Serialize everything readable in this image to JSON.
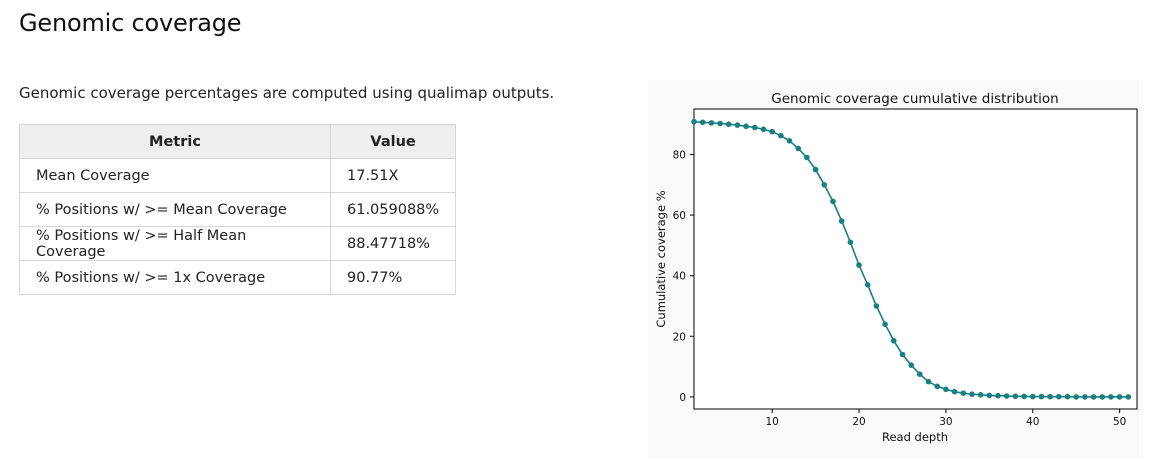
{
  "page": {
    "title": "Genomic coverage",
    "description": "Genomic coverage percentages are computed using qualimap outputs."
  },
  "table": {
    "headers": [
      "Metric",
      "Value"
    ],
    "rows": [
      {
        "metric": "Mean Coverage",
        "value": "17.51X"
      },
      {
        "metric": "% Positions w/ >= Mean Coverage",
        "value": "61.059088%"
      },
      {
        "metric": "% Positions w/ >= Half Mean Coverage",
        "value": "88.47718%"
      },
      {
        "metric": "% Positions w/ >= 1x Coverage",
        "value": "90.77%"
      }
    ]
  },
  "colors": {
    "series": "#1a7f80",
    "table_header_bg": "#eeeeee"
  },
  "chart_data": {
    "type": "line",
    "title": "Genomic coverage cumulative distribution",
    "xlabel": "Read depth",
    "ylabel": "Cumulative coverage %",
    "xlim": [
      1,
      52
    ],
    "ylim": [
      -4,
      95
    ],
    "xticks": [
      10,
      20,
      30,
      40,
      50
    ],
    "yticks": [
      0,
      20,
      40,
      60,
      80
    ],
    "grid": false,
    "markers": true,
    "x": [
      1,
      2,
      3,
      4,
      5,
      6,
      7,
      8,
      9,
      10,
      11,
      12,
      13,
      14,
      15,
      16,
      17,
      18,
      19,
      20,
      21,
      22,
      23,
      24,
      25,
      26,
      27,
      28,
      29,
      30,
      31,
      32,
      33,
      34,
      35,
      36,
      37,
      38,
      39,
      40,
      41,
      42,
      43,
      44,
      45,
      46,
      47,
      48,
      49,
      50,
      51
    ],
    "series": [
      {
        "values": [
          90.8,
          90.6,
          90.4,
          90.2,
          90.0,
          89.7,
          89.3,
          88.9,
          88.3,
          87.5,
          86.2,
          84.5,
          82.0,
          79.0,
          75.0,
          70.0,
          64.5,
          58.0,
          51.0,
          43.5,
          37.0,
          30.0,
          24.0,
          18.5,
          14.0,
          10.5,
          7.5,
          5.0,
          3.5,
          2.5,
          1.7,
          1.2,
          0.9,
          0.7,
          0.5,
          0.4,
          0.3,
          0.2,
          0.15,
          0.1,
          0.1,
          0.05,
          0.05,
          0.05,
          0.0,
          0.0,
          0.0,
          0.0,
          0.0,
          0.0,
          0.0
        ]
      }
    ]
  }
}
